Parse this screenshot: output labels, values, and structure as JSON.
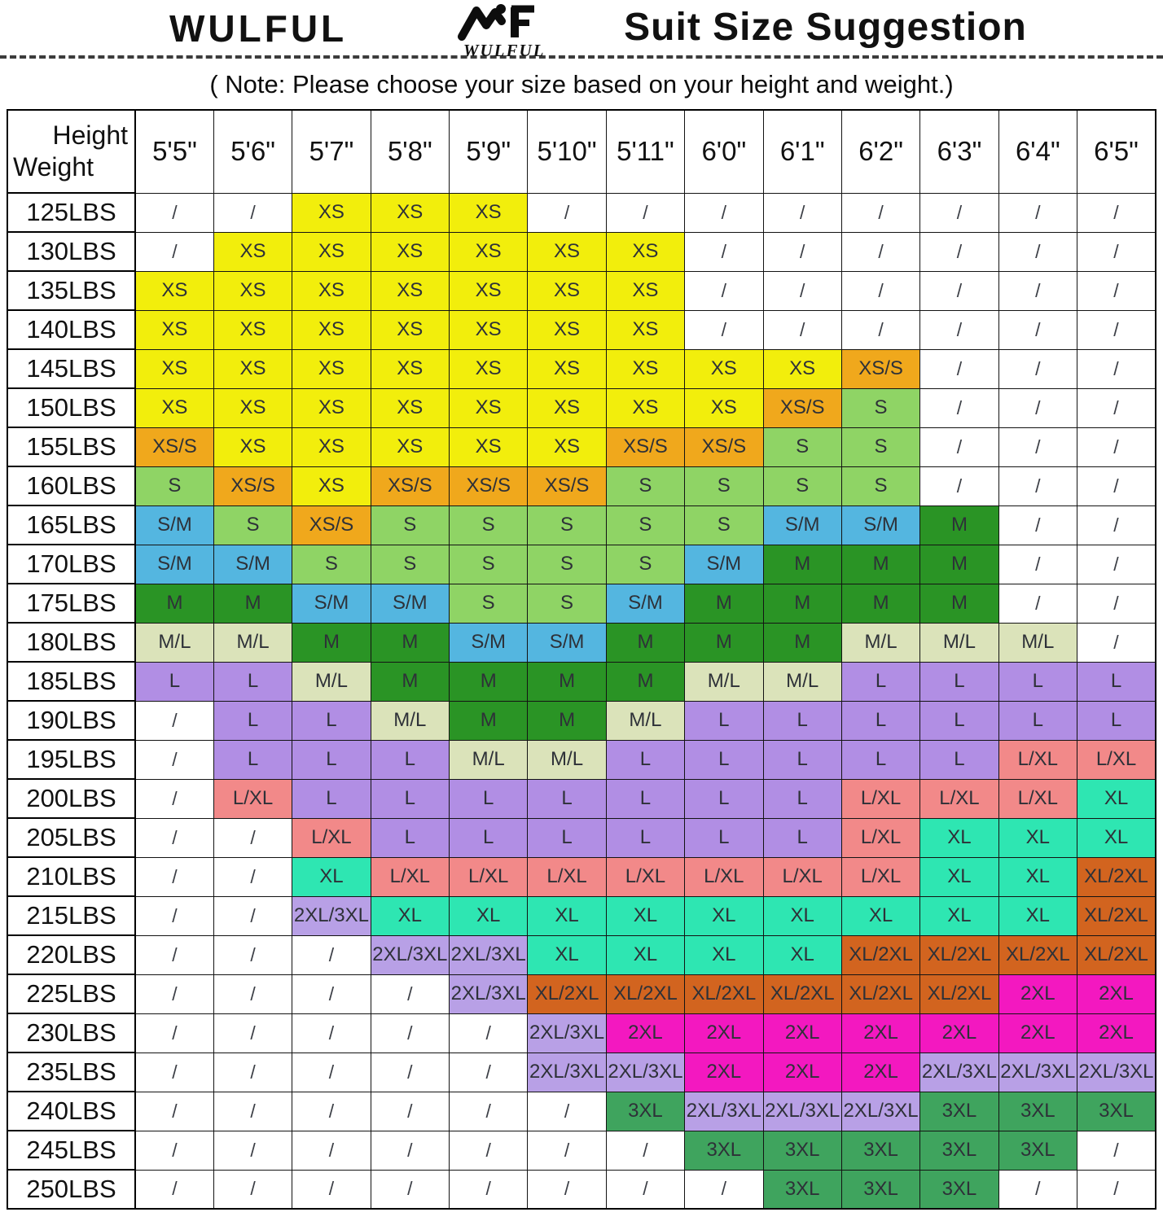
{
  "header": {
    "brand": "WULFUL",
    "logo_text": "WULFUL",
    "title": "Suit Size Suggestion",
    "note": "( Note: Please choose your size based on your height and weight.)"
  },
  "icons": {
    "logo": "mountain-f-logo"
  },
  "colors": {
    "XS": "#f2ee0c",
    "XS/S": "#f0a81c",
    "S": "#8fd465",
    "S/M": "#54b6e0",
    "M": "#2a9425",
    "M/L": "#dbe3ba",
    "L": "#b18ee4",
    "L/XL": "#f28989",
    "XL": "#2ee6b2",
    "XL/2XL": "#d2641f",
    "2XL": "#f318c0",
    "2XL/3XL": "#b8a0e6",
    "3XL": "#3fa45e",
    "none": "#ffffff"
  },
  "chart_data": {
    "type": "heatmap",
    "title": "Suit Size Suggestion",
    "corner": {
      "top": "Height",
      "bottom": "Weight"
    },
    "empty_marker": "/",
    "heights": [
      "5'5\"",
      "5'6\"",
      "5'7\"",
      "5'8\"",
      "5'9\"",
      "5'10\"",
      "5'11\"",
      "6'0\"",
      "6'1\"",
      "6'2\"",
      "6'3\"",
      "6'4\"",
      "6'5\""
    ],
    "rows": [
      {
        "weight": "125LBS",
        "cells": [
          "/",
          "/",
          "XS",
          "XS",
          "XS",
          "/",
          "/",
          "/",
          "/",
          "/",
          "/",
          "/",
          "/"
        ]
      },
      {
        "weight": "130LBS",
        "cells": [
          "/",
          "XS",
          "XS",
          "XS",
          "XS",
          "XS",
          "XS",
          "/",
          "/",
          "/",
          "/",
          "/",
          "/"
        ]
      },
      {
        "weight": "135LBS",
        "cells": [
          "XS",
          "XS",
          "XS",
          "XS",
          "XS",
          "XS",
          "XS",
          "/",
          "/",
          "/",
          "/",
          "/",
          "/"
        ]
      },
      {
        "weight": "140LBS",
        "cells": [
          "XS",
          "XS",
          "XS",
          "XS",
          "XS",
          "XS",
          "XS",
          "/",
          "/",
          "/",
          "/",
          "/",
          "/"
        ]
      },
      {
        "weight": "145LBS",
        "cells": [
          "XS",
          "XS",
          "XS",
          "XS",
          "XS",
          "XS",
          "XS",
          "XS",
          "XS",
          "XS/S",
          "/",
          "/",
          "/"
        ]
      },
      {
        "weight": "150LBS",
        "cells": [
          "XS",
          "XS",
          "XS",
          "XS",
          "XS",
          "XS",
          "XS",
          "XS",
          "XS/S",
          "S",
          "/",
          "/",
          "/"
        ]
      },
      {
        "weight": "155LBS",
        "cells": [
          "XS/S",
          "XS",
          "XS",
          "XS",
          "XS",
          "XS",
          "XS/S",
          "XS/S",
          "S",
          "S",
          "/",
          "/",
          "/"
        ]
      },
      {
        "weight": "160LBS",
        "cells": [
          "S",
          "XS/S",
          "XS",
          "XS/S",
          "XS/S",
          "XS/S",
          "S",
          "S",
          "S",
          "S",
          "/",
          "/",
          "/"
        ]
      },
      {
        "weight": "165LBS",
        "cells": [
          "S/M",
          "S",
          "XS/S",
          "S",
          "S",
          "S",
          "S",
          "S",
          "S/M",
          "S/M",
          "M",
          "/",
          "/"
        ]
      },
      {
        "weight": "170LBS",
        "cells": [
          "S/M",
          "S/M",
          "S",
          "S",
          "S",
          "S",
          "S",
          "S/M",
          "M",
          "M",
          "M",
          "/",
          "/"
        ]
      },
      {
        "weight": "175LBS",
        "cells": [
          "M",
          "M",
          "S/M",
          "S/M",
          "S",
          "S",
          "S/M",
          "M",
          "M",
          "M",
          "M",
          "/",
          "/"
        ]
      },
      {
        "weight": "180LBS",
        "cells": [
          "M/L",
          "M/L",
          "M",
          "M",
          "S/M",
          "S/M",
          "M",
          "M",
          "M",
          "M/L",
          "M/L",
          "M/L",
          "/"
        ]
      },
      {
        "weight": "185LBS",
        "cells": [
          "L",
          "L",
          "M/L",
          "M",
          "M",
          "M",
          "M",
          "M/L",
          "M/L",
          "L",
          "L",
          "L",
          "L"
        ]
      },
      {
        "weight": "190LBS",
        "cells": [
          "/",
          "L",
          "L",
          "M/L",
          "M",
          "M",
          "M/L",
          "L",
          "L",
          "L",
          "L",
          "L",
          "L"
        ]
      },
      {
        "weight": "195LBS",
        "cells": [
          "/",
          "L",
          "L",
          "L",
          "M/L",
          "M/L",
          "L",
          "L",
          "L",
          "L",
          "L",
          "L/XL",
          "L/XL"
        ]
      },
      {
        "weight": "200LBS",
        "cells": [
          "/",
          "L/XL",
          "L",
          "L",
          "L",
          "L",
          "L",
          "L",
          "L",
          "L/XL",
          "L/XL",
          "L/XL",
          "XL"
        ]
      },
      {
        "weight": "205LBS",
        "cells": [
          "/",
          "/",
          "L/XL",
          "L",
          "L",
          "L",
          "L",
          "L",
          "L",
          "L/XL",
          "XL",
          "XL",
          "XL"
        ]
      },
      {
        "weight": "210LBS",
        "cells": [
          "/",
          "/",
          "XL",
          "L/XL",
          "L/XL",
          "L/XL",
          "L/XL",
          "L/XL",
          "L/XL",
          "L/XL",
          "XL",
          "XL",
          "XL/2XL"
        ]
      },
      {
        "weight": "215LBS",
        "cells": [
          "/",
          "/",
          "2XL/3XL",
          "XL",
          "XL",
          "XL",
          "XL",
          "XL",
          "XL",
          "XL",
          "XL",
          "XL",
          "XL/2XL"
        ]
      },
      {
        "weight": "220LBS",
        "cells": [
          "/",
          "/",
          "/",
          "2XL/3XL",
          "2XL/3XL",
          "XL",
          "XL",
          "XL",
          "XL",
          "XL/2XL",
          "XL/2XL",
          "XL/2XL",
          "XL/2XL"
        ]
      },
      {
        "weight": "225LBS",
        "cells": [
          "/",
          "/",
          "/",
          "/",
          "2XL/3XL",
          "XL/2XL",
          "XL/2XL",
          "XL/2XL",
          "XL/2XL",
          "XL/2XL",
          "XL/2XL",
          "2XL",
          "2XL"
        ]
      },
      {
        "weight": "230LBS",
        "cells": [
          "/",
          "/",
          "/",
          "/",
          "/",
          "2XL/3XL",
          "2XL",
          "2XL",
          "2XL",
          "2XL",
          "2XL",
          "2XL",
          "2XL"
        ]
      },
      {
        "weight": "235LBS",
        "cells": [
          "/",
          "/",
          "/",
          "/",
          "/",
          "2XL/3XL",
          "2XL/3XL",
          "2XL",
          "2XL",
          "2XL",
          "2XL/3XL",
          "2XL/3XL",
          "2XL/3XL"
        ]
      },
      {
        "weight": "240LBS",
        "cells": [
          "/",
          "/",
          "/",
          "/",
          "/",
          "/",
          "3XL",
          "2XL/3XL",
          "2XL/3XL",
          "2XL/3XL",
          "3XL",
          "3XL",
          "3XL"
        ]
      },
      {
        "weight": "245LBS",
        "cells": [
          "/",
          "/",
          "/",
          "/",
          "/",
          "/",
          "/",
          "3XL",
          "3XL",
          "3XL",
          "3XL",
          "3XL",
          "/"
        ]
      },
      {
        "weight": "250LBS",
        "cells": [
          "/",
          "/",
          "/",
          "/",
          "/",
          "/",
          "/",
          "/",
          "3XL",
          "3XL",
          "3XL",
          "/",
          "/"
        ]
      }
    ]
  }
}
